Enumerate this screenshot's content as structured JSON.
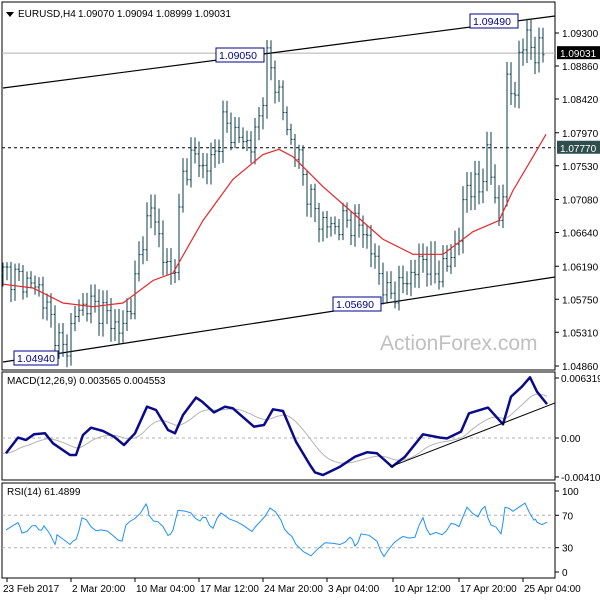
{
  "header": {
    "symbol": "EURUSD,H4",
    "ohlc": "1.09070 1.09094 1.08999 1.09031"
  },
  "watermark": "ActionForex.com",
  "colors": {
    "bars": "#0b3d4b",
    "ma": "#e8262a",
    "macd": "#0a0a8c",
    "signal": "#b4b4b4",
    "rsi": "#1e90ff",
    "label_border": "#00008b"
  },
  "chart_data": [
    {
      "type": "line",
      "title": "EURUSD,H4",
      "x_unit": "bar index (H4)",
      "x_ticks": [
        {
          "bar": 1,
          "label": "23 Feb 2017"
        },
        {
          "bar": 17,
          "label": "2 Mar 20:00"
        },
        {
          "bar": 33,
          "label": "10 Mar 04:00"
        },
        {
          "bar": 49,
          "label": "17 Mar 12:00"
        },
        {
          "bar": 65,
          "label": "24 Mar 20:00"
        },
        {
          "bar": 81,
          "label": "3 Apr 04:00"
        },
        {
          "bar": 97.5,
          "label": "10 Apr 12:00"
        },
        {
          "bar": 114,
          "label": "17 Apr 20:00"
        },
        {
          "bar": 130,
          "label": "25 Apr 04:00"
        }
      ],
      "ylim": [
        1.0486,
        1.097
      ],
      "y_ticks": [
        "1.09300",
        "1.08860",
        "1.08420",
        "1.07970",
        "1.07530",
        "1.07080",
        "1.06640",
        "1.06190",
        "1.05750",
        "1.05310",
        "1.04860"
      ],
      "current_price": {
        "value": 1.09031,
        "label": "1.09031"
      },
      "horizontal_level": {
        "value": 1.0777,
        "label": "1.07770"
      },
      "price_close_keypoints": [
        [
          1,
          1.061
        ],
        [
          5,
          1.06
        ],
        [
          9,
          1.059
        ],
        [
          12.5,
          1.054
        ],
        [
          15.5,
          1.05
        ],
        [
          17.5,
          1.055
        ],
        [
          21,
          1.057
        ],
        [
          25,
          1.056
        ],
        [
          29.5,
          1.053
        ],
        [
          32.5,
          1.058
        ],
        [
          35,
          1.066
        ],
        [
          37.5,
          1.07
        ],
        [
          40,
          1.063
        ],
        [
          42.5,
          1.06
        ],
        [
          45,
          1.074
        ],
        [
          47.5,
          1.077
        ],
        [
          50,
          1.075
        ],
        [
          52.5,
          1.076
        ],
        [
          55,
          1.081
        ],
        [
          59,
          1.079
        ],
        [
          62.5,
          1.078
        ],
        [
          64.5,
          1.083
        ],
        [
          66,
          1.0895
        ],
        [
          69,
          1.085
        ],
        [
          71,
          1.08
        ],
        [
          74,
          1.076
        ],
        [
          76,
          1.072
        ],
        [
          79,
          1.068
        ],
        [
          82.5,
          1.067
        ],
        [
          86,
          1.068
        ],
        [
          90,
          1.067
        ],
        [
          94,
          1.061
        ],
        [
          96,
          1.058
        ],
        [
          99,
          1.059
        ],
        [
          102.5,
          1.061
        ],
        [
          105,
          1.063
        ],
        [
          108,
          1.061
        ],
        [
          111,
          1.062
        ],
        [
          114,
          1.066
        ],
        [
          116,
          1.073
        ],
        [
          119,
          1.072
        ],
        [
          121,
          1.077
        ],
        [
          124,
          1.068
        ],
        [
          125,
          1.072
        ],
        [
          126,
          1.086
        ],
        [
          127.5,
          1.085
        ],
        [
          130,
          1.091
        ],
        [
          131,
          1.0945
        ],
        [
          132.5,
          1.088
        ],
        [
          134,
          1.092
        ],
        [
          135,
          1.0903
        ]
      ],
      "moving_average_keypoints": [
        [
          0,
          1.0595
        ],
        [
          7.5,
          1.059
        ],
        [
          15,
          1.057
        ],
        [
          22.5,
          1.0565
        ],
        [
          30,
          1.057
        ],
        [
          37.5,
          1.06
        ],
        [
          42.5,
          1.061
        ],
        [
          50,
          1.068
        ],
        [
          57.5,
          1.0735
        ],
        [
          65,
          1.0768
        ],
        [
          69,
          1.0775
        ],
        [
          72.5,
          1.0765
        ],
        [
          80,
          1.0725
        ],
        [
          87.5,
          1.069
        ],
        [
          95,
          1.0655
        ],
        [
          102.5,
          1.0635
        ],
        [
          110,
          1.0635
        ],
        [
          117.5,
          1.0665
        ],
        [
          124,
          1.068
        ],
        [
          127.5,
          1.072
        ],
        [
          132.5,
          1.0765
        ],
        [
          135.75,
          1.0795
        ]
      ],
      "trendlines": [
        {
          "name": "upper-channel",
          "from": [
            0,
            1.08567
          ],
          "to": [
            138.75,
            1.09527
          ]
        },
        {
          "name": "lower-channel",
          "from": [
            0,
            1.04913
          ],
          "to": [
            138.75,
            1.06047
          ]
        }
      ],
      "annotations": [
        {
          "label": "1.09490",
          "bar": 131,
          "value": 1.0949
        },
        {
          "label": "1.09050",
          "bar": 66,
          "value": 1.0905
        },
        {
          "label": "1.05690",
          "bar": 94,
          "value": 1.0569
        },
        {
          "label": "1.04940",
          "bar": 15.5,
          "value": 1.0494
        }
      ]
    },
    {
      "type": "line",
      "title": "MACD(12,26,9) 0.003565 0.004553",
      "ylim": [
        -0.004102,
        0.006319
      ],
      "y_ticks": [
        "0.006319",
        "0.00",
        "-0.004102"
      ],
      "macd_keypoints": [
        [
          0.75,
          -0.00161
        ],
        [
          3.75,
          4e-05
        ],
        [
          5.75,
          -0.00021
        ],
        [
          7.75,
          0.00039
        ],
        [
          10.5,
          0.00049
        ],
        [
          12.5,
          -0.00056
        ],
        [
          16.75,
          -0.00179
        ],
        [
          18.25,
          -0.00179
        ],
        [
          20,
          0.00032
        ],
        [
          22,
          0.00109
        ],
        [
          25,
          0.00074
        ],
        [
          27.75,
          0.00014
        ],
        [
          30.25,
          -0.00074
        ],
        [
          33,
          0.00049
        ],
        [
          36,
          0.0033
        ],
        [
          38.25,
          0.00295
        ],
        [
          41.25,
          0.00084
        ],
        [
          43,
          0.00049
        ],
        [
          45,
          0.00242
        ],
        [
          48.25,
          0.00425
        ],
        [
          49.75,
          0.00383
        ],
        [
          52.75,
          0.0027
        ],
        [
          55.5,
          0.0033
        ],
        [
          57.5,
          0.00312
        ],
        [
          62.75,
          0.00119
        ],
        [
          65.25,
          0.00137
        ],
        [
          67.5,
          0.00302
        ],
        [
          70,
          0.00284
        ],
        [
          73.25,
          -0.00039
        ],
        [
          76.75,
          -0.00284
        ],
        [
          78,
          -0.00362
        ],
        [
          80,
          -0.0039
        ],
        [
          84.25,
          -0.00302
        ],
        [
          88,
          -0.00197
        ],
        [
          91,
          -0.00151
        ],
        [
          93.5,
          -0.00161
        ],
        [
          97.25,
          -0.00302
        ],
        [
          100.5,
          -0.00197
        ],
        [
          105,
          0.00039
        ],
        [
          109.25,
          4e-05
        ],
        [
          111,
          -4e-05
        ],
        [
          114.5,
          0.00067
        ],
        [
          116.5,
          0.0026
        ],
        [
          121.25,
          0.0032
        ],
        [
          125,
          0.00144
        ],
        [
          127,
          0.00435
        ],
        [
          129.75,
          0.00541
        ],
        [
          131.75,
          0.00639
        ],
        [
          133.5,
          0.00488
        ],
        [
          136,
          0.00357
        ]
      ],
      "signal_last": 0.004553,
      "trendline": {
        "from": [
          96.75,
          -0.00305
        ],
        "to": [
          139.25,
          0.00369
        ]
      }
    },
    {
      "type": "line",
      "title": "RSI(14) 61.4899",
      "ylim": [
        0,
        100
      ],
      "levels": [
        30,
        70
      ],
      "y_ticks": [
        "100",
        "70",
        "30",
        "0"
      ],
      "rsi_keypoints": [
        [
          0.75,
          52
        ],
        [
          3.75,
          61
        ],
        [
          4.75,
          48
        ],
        [
          7.25,
          57
        ],
        [
          9,
          52
        ],
        [
          10.25,
          57
        ],
        [
          13,
          34
        ],
        [
          13.5,
          46
        ],
        [
          16.75,
          34
        ],
        [
          18.25,
          40
        ],
        [
          19.75,
          67
        ],
        [
          22,
          56
        ],
        [
          24.5,
          52
        ],
        [
          27.75,
          44
        ],
        [
          29.75,
          38
        ],
        [
          30.75,
          58
        ],
        [
          33,
          66
        ],
        [
          35.75,
          84
        ],
        [
          36.5,
          70
        ],
        [
          38.75,
          62
        ],
        [
          41.25,
          45
        ],
        [
          42.5,
          52
        ],
        [
          43.75,
          76
        ],
        [
          47,
          73
        ],
        [
          49.25,
          63
        ],
        [
          50.75,
          67
        ],
        [
          52.5,
          54
        ],
        [
          54.5,
          73
        ],
        [
          58.5,
          62
        ],
        [
          62.25,
          50
        ],
        [
          64.25,
          62
        ],
        [
          66.75,
          79
        ],
        [
          69.5,
          64
        ],
        [
          71.25,
          48
        ],
        [
          73.25,
          34
        ],
        [
          77,
          20
        ],
        [
          80.5,
          36
        ],
        [
          84.25,
          34
        ],
        [
          86.75,
          43
        ],
        [
          88,
          32
        ],
        [
          89.5,
          47
        ],
        [
          93.5,
          38
        ],
        [
          95.25,
          19
        ],
        [
          97.75,
          36
        ],
        [
          100,
          44
        ],
        [
          103,
          43
        ],
        [
          105,
          67
        ],
        [
          106.75,
          46
        ],
        [
          109.75,
          46
        ],
        [
          112,
          60
        ],
        [
          114,
          56
        ],
        [
          116,
          80
        ],
        [
          118.75,
          68
        ],
        [
          120.5,
          81
        ],
        [
          122,
          58
        ],
        [
          124.5,
          47
        ],
        [
          125.5,
          80
        ],
        [
          127.5,
          75
        ],
        [
          130.5,
          85
        ],
        [
          132.75,
          64
        ],
        [
          133.5,
          61.5
        ],
        [
          136,
          61.49
        ]
      ]
    }
  ]
}
